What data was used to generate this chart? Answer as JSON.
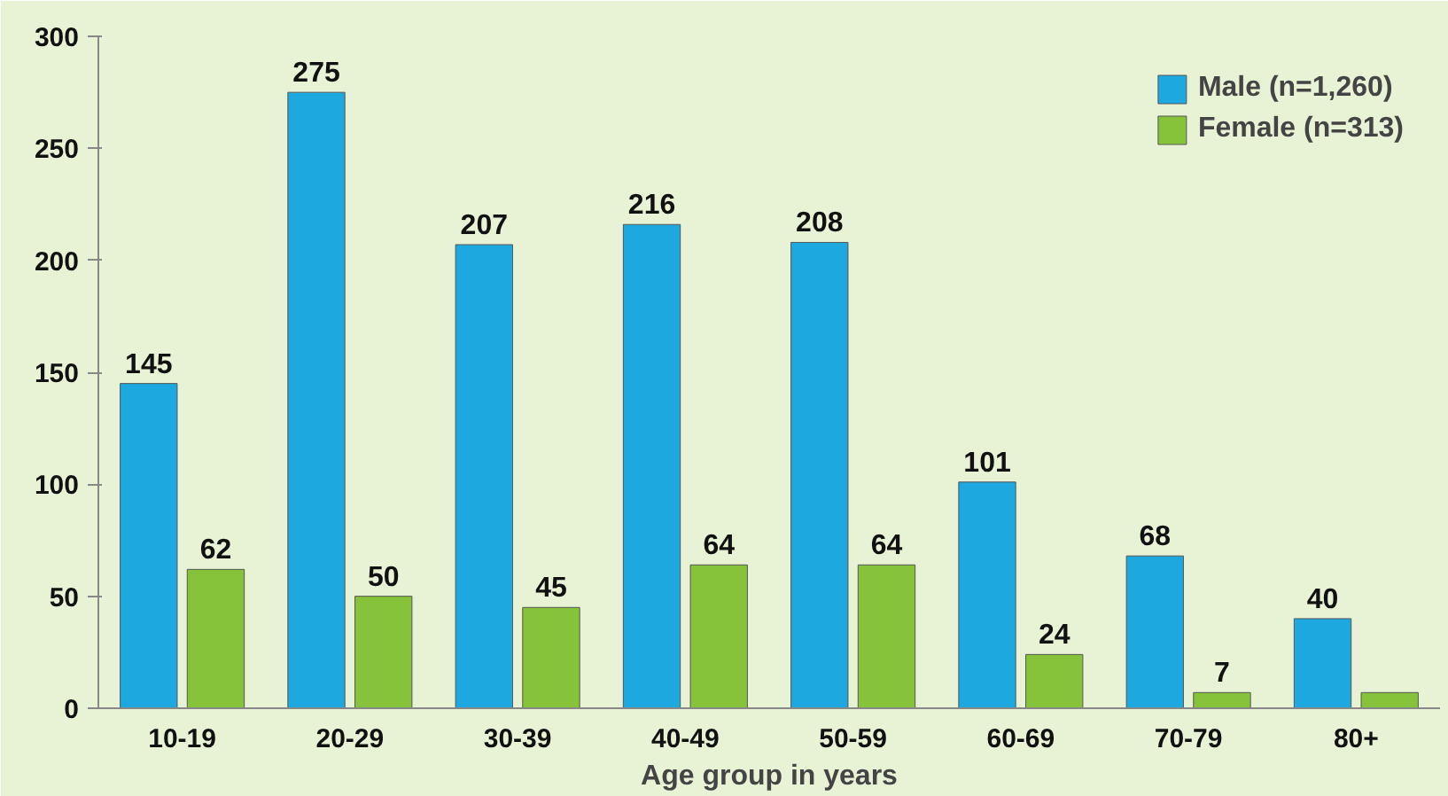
{
  "chart_data": {
    "type": "bar",
    "xlabel": "Age group in years",
    "categories": [
      "10-19",
      "20-29",
      "30-39",
      "40-49",
      "50-59",
      "60-69",
      "70-79",
      "80+"
    ],
    "series": [
      {
        "name": "Male (n=1,260)",
        "color": "#1ea8e0",
        "values": [
          145,
          275,
          207,
          216,
          208,
          101,
          68,
          40
        ],
        "value_labels": [
          "145",
          "275",
          "207",
          "216",
          "208",
          "101",
          "68",
          "40"
        ]
      },
      {
        "name": "Female (n=313)",
        "color": "#86c23a",
        "values": [
          62,
          50,
          45,
          64,
          64,
          24,
          7,
          7
        ],
        "value_labels": [
          "62",
          "50",
          "45",
          "64",
          "64",
          "24",
          "7",
          null
        ]
      }
    ],
    "ylim": [
      0,
      300
    ],
    "yticks": [
      0,
      50,
      100,
      150,
      200,
      250,
      300
    ],
    "grid": false,
    "legend": "top right"
  }
}
